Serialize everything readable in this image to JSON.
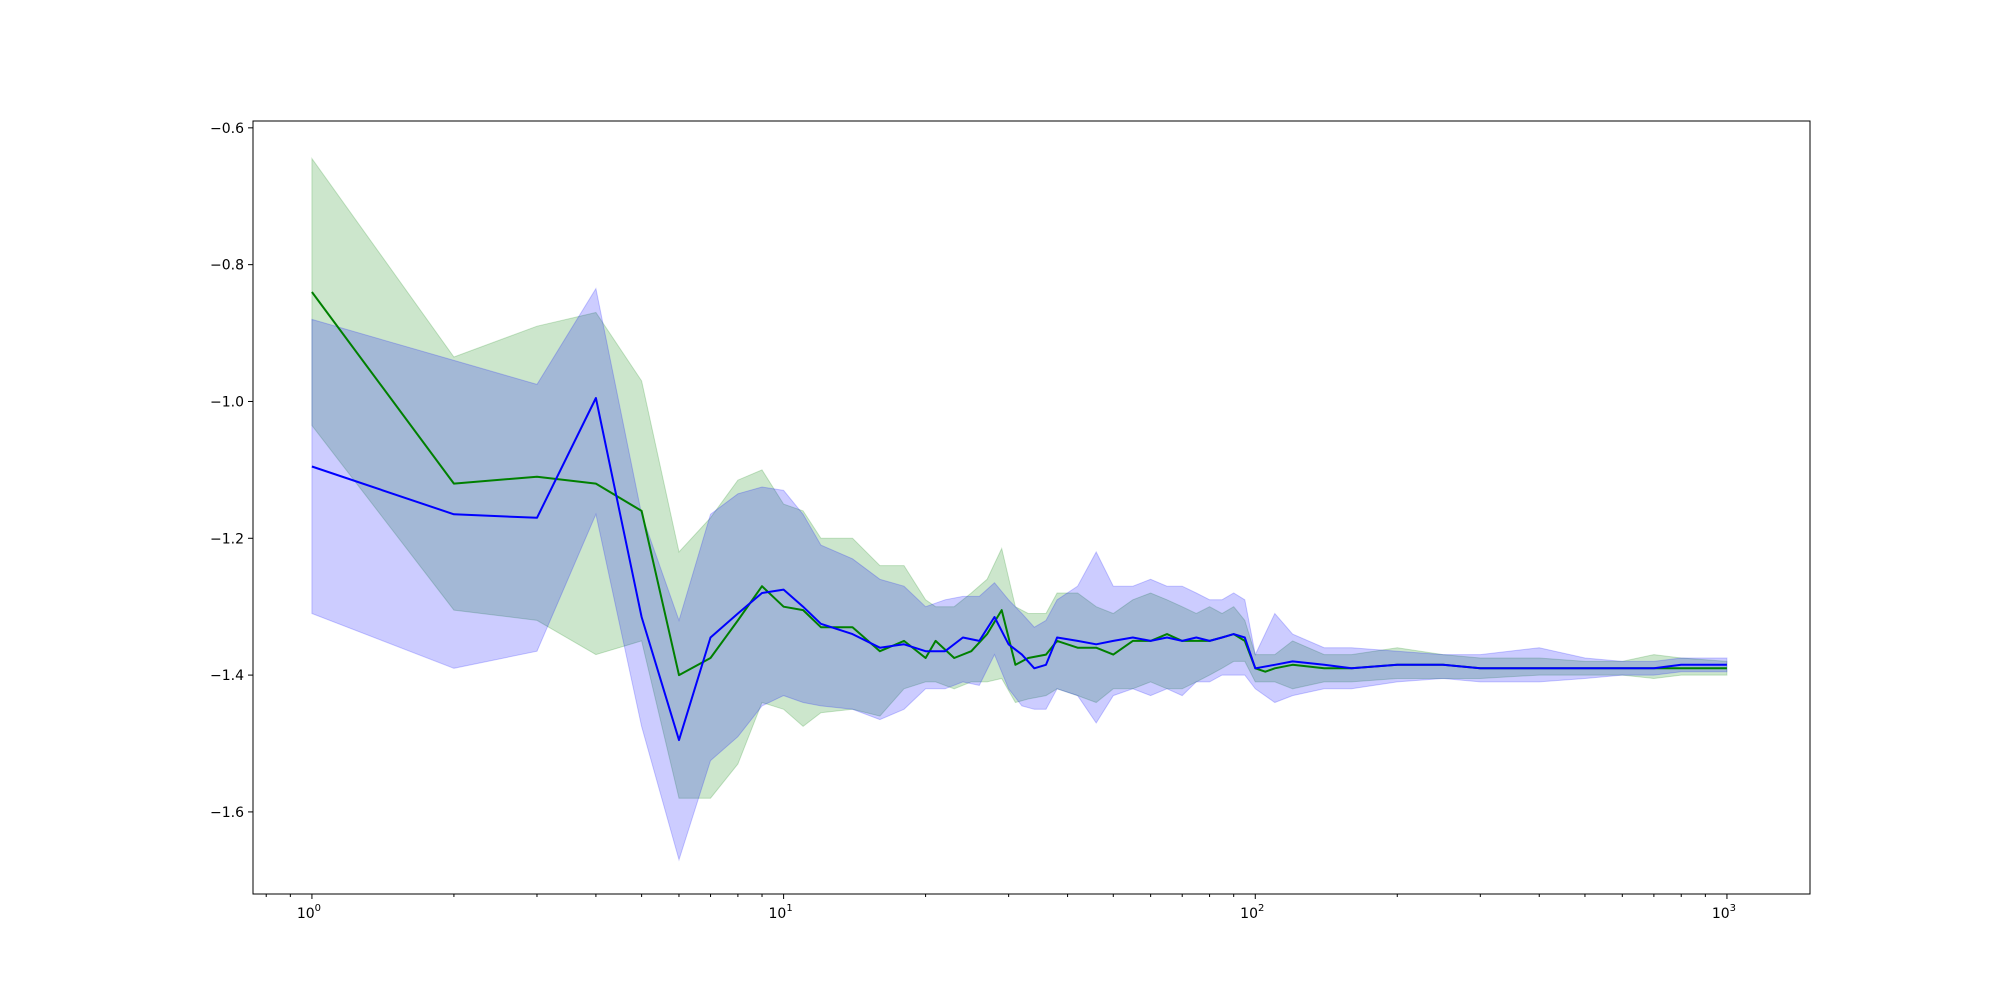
{
  "chart_data": {
    "type": "line",
    "title": "",
    "xlabel": "",
    "ylabel": "",
    "xscale": "log",
    "xlim": [
      0.75,
      1500
    ],
    "ylim": [
      -1.72,
      -0.59
    ],
    "grid": false,
    "legend": "none",
    "x_ticks": [
      {
        "value": 1,
        "base": "10",
        "exp": "0"
      },
      {
        "value": 10,
        "base": "10",
        "exp": "1"
      },
      {
        "value": 100,
        "base": "10",
        "exp": "2"
      },
      {
        "value": 1000,
        "base": "10",
        "exp": "3"
      }
    ],
    "y_ticks": [
      {
        "value": -0.6,
        "label": "−0.6"
      },
      {
        "value": -0.8,
        "label": "−0.8"
      },
      {
        "value": -1.0,
        "label": "−1.0"
      },
      {
        "value": -1.2,
        "label": "−1.2"
      },
      {
        "value": -1.4,
        "label": "−1.4"
      },
      {
        "value": -1.6,
        "label": "−1.6"
      }
    ],
    "series": [
      {
        "color": "#008000",
        "band_color": "#008000",
        "band_opacity": 0.2,
        "points": [
          [
            1,
            -0.84,
            -0.645,
            -1.035
          ],
          [
            2,
            -1.12,
            -0.935,
            -1.305
          ],
          [
            3,
            -1.11,
            -0.89,
            -1.32
          ],
          [
            4,
            -1.12,
            -0.87,
            -1.37
          ],
          [
            5,
            -1.16,
            -0.97,
            -1.35
          ],
          [
            6,
            -1.4,
            -1.22,
            -1.58
          ],
          [
            7,
            -1.375,
            -1.17,
            -1.58
          ],
          [
            8,
            -1.32,
            -1.115,
            -1.53
          ],
          [
            9,
            -1.27,
            -1.1,
            -1.44
          ],
          [
            10,
            -1.3,
            -1.15,
            -1.45
          ],
          [
            11,
            -1.305,
            -1.16,
            -1.475
          ],
          [
            12,
            -1.33,
            -1.2,
            -1.455
          ],
          [
            14,
            -1.33,
            -1.2,
            -1.45
          ],
          [
            16,
            -1.365,
            -1.24,
            -1.46
          ],
          [
            18,
            -1.35,
            -1.24,
            -1.42
          ],
          [
            20,
            -1.375,
            -1.29,
            -1.41
          ],
          [
            21,
            -1.35,
            -1.3,
            -1.41
          ],
          [
            23,
            -1.375,
            -1.3,
            -1.42
          ],
          [
            25,
            -1.365,
            -1.28,
            -1.41
          ],
          [
            27,
            -1.34,
            -1.26,
            -1.41
          ],
          [
            29,
            -1.305,
            -1.215,
            -1.405
          ],
          [
            31,
            -1.385,
            -1.3,
            -1.44
          ],
          [
            33,
            -1.375,
            -1.31,
            -1.435
          ],
          [
            36,
            -1.37,
            -1.31,
            -1.43
          ],
          [
            38,
            -1.35,
            -1.28,
            -1.42
          ],
          [
            42,
            -1.36,
            -1.28,
            -1.43
          ],
          [
            46,
            -1.36,
            -1.3,
            -1.44
          ],
          [
            50,
            -1.37,
            -1.31,
            -1.42
          ],
          [
            55,
            -1.35,
            -1.29,
            -1.42
          ],
          [
            60,
            -1.35,
            -1.28,
            -1.41
          ],
          [
            65,
            -1.34,
            -1.29,
            -1.42
          ],
          [
            70,
            -1.35,
            -1.3,
            -1.42
          ],
          [
            75,
            -1.35,
            -1.31,
            -1.41
          ],
          [
            80,
            -1.35,
            -1.3,
            -1.4
          ],
          [
            85,
            -1.345,
            -1.31,
            -1.39
          ],
          [
            90,
            -1.34,
            -1.3,
            -1.38
          ],
          [
            95,
            -1.35,
            -1.32,
            -1.38
          ],
          [
            100,
            -1.39,
            -1.37,
            -1.41
          ],
          [
            105,
            -1.395,
            -1.37,
            -1.41
          ],
          [
            110,
            -1.39,
            -1.37,
            -1.41
          ],
          [
            120,
            -1.385,
            -1.35,
            -1.42
          ],
          [
            140,
            -1.39,
            -1.37,
            -1.41
          ],
          [
            160,
            -1.39,
            -1.37,
            -1.41
          ],
          [
            200,
            -1.385,
            -1.36,
            -1.405
          ],
          [
            250,
            -1.385,
            -1.37,
            -1.405
          ],
          [
            300,
            -1.39,
            -1.375,
            -1.405
          ],
          [
            400,
            -1.39,
            -1.375,
            -1.4
          ],
          [
            500,
            -1.39,
            -1.38,
            -1.4
          ],
          [
            600,
            -1.39,
            -1.38,
            -1.4
          ],
          [
            700,
            -1.39,
            -1.37,
            -1.405
          ],
          [
            800,
            -1.39,
            -1.375,
            -1.4
          ],
          [
            1000,
            -1.39,
            -1.38,
            -1.4
          ]
        ]
      },
      {
        "color": "#0000ff",
        "band_color": "#0000ff",
        "band_opacity": 0.2,
        "points": [
          [
            1,
            -1.095,
            -0.88,
            -1.31
          ],
          [
            2,
            -1.165,
            -0.94,
            -1.39
          ],
          [
            3,
            -1.17,
            -0.975,
            -1.365
          ],
          [
            4,
            -0.995,
            -0.835,
            -1.165
          ],
          [
            5,
            -1.315,
            -1.165,
            -1.475
          ],
          [
            6,
            -1.495,
            -1.32,
            -1.67
          ],
          [
            7,
            -1.345,
            -1.165,
            -1.525
          ],
          [
            8,
            -1.31,
            -1.135,
            -1.49
          ],
          [
            9,
            -1.28,
            -1.125,
            -1.445
          ],
          [
            10,
            -1.275,
            -1.13,
            -1.43
          ],
          [
            11,
            -1.3,
            -1.165,
            -1.44
          ],
          [
            12,
            -1.325,
            -1.21,
            -1.445
          ],
          [
            14,
            -1.34,
            -1.23,
            -1.45
          ],
          [
            16,
            -1.36,
            -1.26,
            -1.465
          ],
          [
            18,
            -1.355,
            -1.27,
            -1.45
          ],
          [
            20,
            -1.365,
            -1.3,
            -1.42
          ],
          [
            22,
            -1.365,
            -1.29,
            -1.42
          ],
          [
            24,
            -1.345,
            -1.285,
            -1.41
          ],
          [
            26,
            -1.35,
            -1.285,
            -1.415
          ],
          [
            28,
            -1.315,
            -1.265,
            -1.37
          ],
          [
            30,
            -1.355,
            -1.29,
            -1.42
          ],
          [
            32,
            -1.37,
            -1.31,
            -1.445
          ],
          [
            34,
            -1.39,
            -1.33,
            -1.45
          ],
          [
            36,
            -1.385,
            -1.32,
            -1.45
          ],
          [
            38,
            -1.345,
            -1.29,
            -1.42
          ],
          [
            42,
            -1.35,
            -1.27,
            -1.43
          ],
          [
            46,
            -1.355,
            -1.22,
            -1.47
          ],
          [
            50,
            -1.35,
            -1.27,
            -1.43
          ],
          [
            55,
            -1.345,
            -1.27,
            -1.42
          ],
          [
            60,
            -1.35,
            -1.26,
            -1.43
          ],
          [
            65,
            -1.345,
            -1.27,
            -1.42
          ],
          [
            70,
            -1.35,
            -1.27,
            -1.43
          ],
          [
            75,
            -1.345,
            -1.28,
            -1.41
          ],
          [
            80,
            -1.35,
            -1.29,
            -1.41
          ],
          [
            85,
            -1.345,
            -1.29,
            -1.4
          ],
          [
            90,
            -1.34,
            -1.28,
            -1.4
          ],
          [
            95,
            -1.345,
            -1.29,
            -1.4
          ],
          [
            100,
            -1.39,
            -1.37,
            -1.42
          ],
          [
            110,
            -1.385,
            -1.31,
            -1.44
          ],
          [
            120,
            -1.38,
            -1.34,
            -1.43
          ],
          [
            140,
            -1.385,
            -1.36,
            -1.42
          ],
          [
            160,
            -1.39,
            -1.36,
            -1.42
          ],
          [
            200,
            -1.385,
            -1.365,
            -1.41
          ],
          [
            250,
            -1.385,
            -1.37,
            -1.405
          ],
          [
            300,
            -1.39,
            -1.37,
            -1.41
          ],
          [
            400,
            -1.39,
            -1.36,
            -1.41
          ],
          [
            500,
            -1.39,
            -1.375,
            -1.405
          ],
          [
            600,
            -1.39,
            -1.38,
            -1.4
          ],
          [
            700,
            -1.39,
            -1.38,
            -1.4
          ],
          [
            800,
            -1.385,
            -1.375,
            -1.395
          ],
          [
            1000,
            -1.385,
            -1.375,
            -1.395
          ]
        ]
      }
    ]
  }
}
